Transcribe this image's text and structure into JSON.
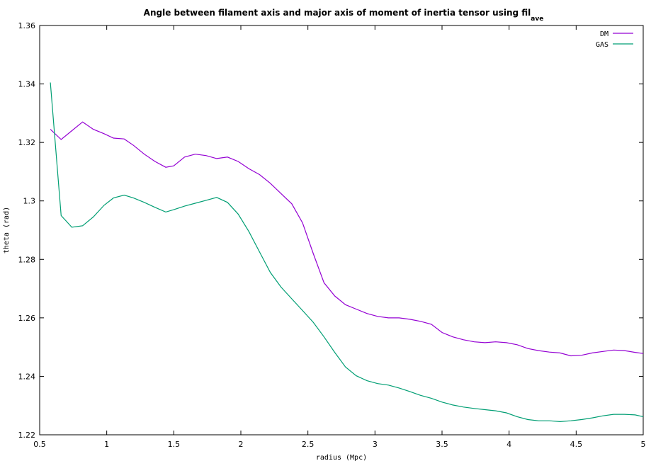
{
  "chart_data": {
    "type": "line",
    "title": "Angle between filament axis and major axis of moment of inertia tensor using fil",
    "title_subscript": "ave",
    "xlabel": "radius (Mpc)",
    "ylabel": "theta (rad)",
    "xlim": [
      0.5,
      5
    ],
    "ylim": [
      1.22,
      1.36
    ],
    "x_ticks": [
      0.5,
      1,
      1.5,
      2,
      2.5,
      3,
      3.5,
      4,
      4.5,
      5
    ],
    "x_tick_labels": [
      "0.5",
      "1",
      "1.5",
      "2",
      "2.5",
      "3",
      "3.5",
      "4",
      "4.5",
      "5"
    ],
    "y_ticks": [
      1.22,
      1.24,
      1.26,
      1.28,
      1.3,
      1.32,
      1.34,
      1.36
    ],
    "y_tick_labels": [
      "1.22",
      "1.24",
      "1.26",
      "1.28",
      "1.3",
      "1.32",
      "1.34",
      "1.36"
    ],
    "grid": false,
    "legend_position": "top-right",
    "series": [
      {
        "name": "DM",
        "color": "#9400d3",
        "x": [
          0.58,
          0.66,
          0.74,
          0.82,
          0.9,
          0.98,
          1.05,
          1.13,
          1.2,
          1.28,
          1.36,
          1.44,
          1.5,
          1.58,
          1.66,
          1.74,
          1.82,
          1.9,
          1.98,
          2.06,
          2.14,
          2.22,
          2.3,
          2.38,
          2.46,
          2.54,
          2.62,
          2.7,
          2.78,
          2.86,
          2.94,
          3.02,
          3.1,
          3.18,
          3.26,
          3.34,
          3.42,
          3.5,
          3.58,
          3.66,
          3.74,
          3.82,
          3.9,
          3.98,
          4.06,
          4.14,
          4.22,
          4.3,
          4.38,
          4.46,
          4.54,
          4.62,
          4.7,
          4.78,
          4.86,
          4.94,
          5.0
        ],
        "y": [
          1.3245,
          1.321,
          1.324,
          1.327,
          1.3245,
          1.323,
          1.3215,
          1.3212,
          1.319,
          1.316,
          1.3135,
          1.3115,
          1.312,
          1.315,
          1.316,
          1.3155,
          1.3145,
          1.315,
          1.3135,
          1.311,
          1.309,
          1.306,
          1.3025,
          1.299,
          1.2925,
          1.282,
          1.272,
          1.2675,
          1.2645,
          1.263,
          1.2615,
          1.2605,
          1.26,
          1.26,
          1.2595,
          1.2588,
          1.2578,
          1.255,
          1.2535,
          1.2525,
          1.2518,
          1.2515,
          1.2518,
          1.2515,
          1.2508,
          1.2495,
          1.2488,
          1.2483,
          1.248,
          1.247,
          1.2472,
          1.248,
          1.2485,
          1.249,
          1.2488,
          1.2482,
          1.2478
        ]
      },
      {
        "name": "GAS",
        "color": "#009e73",
        "x": [
          0.58,
          0.66,
          0.74,
          0.82,
          0.9,
          0.98,
          1.05,
          1.13,
          1.2,
          1.28,
          1.36,
          1.44,
          1.5,
          1.58,
          1.66,
          1.74,
          1.82,
          1.9,
          1.98,
          2.06,
          2.14,
          2.22,
          2.3,
          2.38,
          2.46,
          2.54,
          2.62,
          2.7,
          2.78,
          2.86,
          2.94,
          3.02,
          3.1,
          3.18,
          3.26,
          3.34,
          3.42,
          3.5,
          3.58,
          3.66,
          3.74,
          3.82,
          3.9,
          3.98,
          4.06,
          4.14,
          4.22,
          4.3,
          4.38,
          4.46,
          4.54,
          4.62,
          4.7,
          4.78,
          4.86,
          4.94,
          5.0
        ],
        "y": [
          1.3405,
          1.295,
          1.291,
          1.2915,
          1.2945,
          1.2985,
          1.301,
          1.302,
          1.301,
          1.2995,
          1.2978,
          1.2962,
          1.297,
          1.2982,
          1.2992,
          1.3002,
          1.3012,
          1.2995,
          1.2955,
          1.2895,
          1.2825,
          1.2755,
          1.2705,
          1.2665,
          1.2625,
          1.2585,
          1.2535,
          1.2482,
          1.2432,
          1.2402,
          1.2385,
          1.2375,
          1.237,
          1.236,
          1.2348,
          1.2335,
          1.2325,
          1.2312,
          1.2302,
          1.2295,
          1.229,
          1.2286,
          1.2282,
          1.2275,
          1.2262,
          1.2252,
          1.2248,
          1.2248,
          1.2245,
          1.2248,
          1.2252,
          1.2258,
          1.2265,
          1.227,
          1.227,
          1.2268,
          1.2262
        ]
      }
    ]
  }
}
